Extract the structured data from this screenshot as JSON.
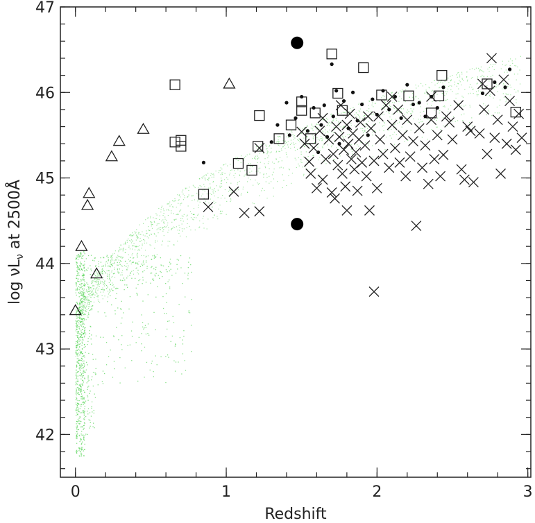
{
  "chart_data": {
    "type": "scatter",
    "title": "",
    "xlabel": "Redshift",
    "ylabel_parts": {
      "pre": "log ",
      "nu": "ν",
      "L": "L",
      "sub": "ν",
      "post": " at 2500Å"
    },
    "xlim": [
      -0.1,
      3.02
    ],
    "ylim": [
      41.5,
      47.0
    ],
    "x_ticks": [
      0,
      1,
      2,
      3
    ],
    "y_ticks": [
      42,
      43,
      44,
      45,
      46,
      47
    ],
    "x_tick_labels": [
      "0",
      "1",
      "2",
      "3"
    ],
    "y_tick_labels": [
      "42",
      "43",
      "44",
      "45",
      "46",
      "47"
    ],
    "colors": {
      "background_points": "#33cc33",
      "markers": "#222222"
    },
    "series": [
      {
        "marker": "triangle",
        "points": [
          [
            0.0,
            43.45
          ],
          [
            0.04,
            44.2
          ],
          [
            0.08,
            44.68
          ],
          [
            0.09,
            44.82
          ],
          [
            0.14,
            43.88
          ],
          [
            0.24,
            45.25
          ],
          [
            0.29,
            45.43
          ],
          [
            0.45,
            45.57
          ],
          [
            1.02,
            46.1
          ]
        ]
      },
      {
        "marker": "square",
        "points": [
          [
            0.66,
            46.09
          ],
          [
            0.66,
            45.42
          ],
          [
            0.7,
            45.44
          ],
          [
            0.7,
            45.37
          ],
          [
            0.85,
            44.81
          ],
          [
            1.08,
            45.17
          ],
          [
            1.17,
            45.09
          ],
          [
            1.22,
            45.73
          ],
          [
            1.21,
            45.37
          ],
          [
            1.35,
            45.46
          ],
          [
            1.43,
            45.62
          ],
          [
            1.5,
            45.89
          ],
          [
            1.5,
            45.79
          ],
          [
            1.56,
            45.46
          ],
          [
            1.59,
            45.76
          ],
          [
            1.7,
            46.45
          ],
          [
            1.74,
            45.99
          ],
          [
            1.77,
            45.79
          ],
          [
            1.91,
            46.29
          ],
          [
            2.03,
            45.97
          ],
          [
            2.21,
            45.96
          ],
          [
            2.36,
            45.76
          ],
          [
            2.41,
            45.96
          ],
          [
            2.43,
            46.2
          ],
          [
            2.73,
            46.1
          ],
          [
            2.92,
            45.77
          ]
        ]
      },
      {
        "marker": "cross",
        "points": [
          [
            0.88,
            44.66
          ],
          [
            1.05,
            44.84
          ],
          [
            1.12,
            44.59
          ],
          [
            1.22,
            44.61
          ],
          [
            1.22,
            45.35
          ],
          [
            1.5,
            45.54
          ],
          [
            1.52,
            45.4
          ],
          [
            1.55,
            45.19
          ],
          [
            1.58,
            45.35
          ],
          [
            1.6,
            44.88
          ],
          [
            1.62,
            45.55
          ],
          [
            1.64,
            45.7
          ],
          [
            1.66,
            45.22
          ],
          [
            1.68,
            45.45
          ],
          [
            1.7,
            44.83
          ],
          [
            1.71,
            45.28
          ],
          [
            1.72,
            44.76
          ],
          [
            1.73,
            45.6
          ],
          [
            1.74,
            45.15
          ],
          [
            1.75,
            45.48
          ],
          [
            1.76,
            45.85
          ],
          [
            1.77,
            45.05
          ],
          [
            1.78,
            45.33
          ],
          [
            1.79,
            44.9
          ],
          [
            1.8,
            45.62
          ],
          [
            1.8,
            44.62
          ],
          [
            1.81,
            45.4
          ],
          [
            1.82,
            45.75
          ],
          [
            1.83,
            45.22
          ],
          [
            1.84,
            45.52
          ],
          [
            1.85,
            45.1
          ],
          [
            1.86,
            45.3
          ],
          [
            1.87,
            44.85
          ],
          [
            1.88,
            45.45
          ],
          [
            1.89,
            45.65
          ],
          [
            1.9,
            45.18
          ],
          [
            1.92,
            45.38
          ],
          [
            1.93,
            45.02
          ],
          [
            1.95,
            44.62
          ],
          [
            1.96,
            45.58
          ],
          [
            1.98,
            45.2
          ],
          [
            1.98,
            43.67
          ],
          [
            2.0,
            44.88
          ],
          [
            2.01,
            45.72
          ],
          [
            2.02,
            45.45
          ],
          [
            2.04,
            45.28
          ],
          [
            2.06,
            45.85
          ],
          [
            2.08,
            45.12
          ],
          [
            2.1,
            45.62
          ],
          [
            2.12,
            45.35
          ],
          [
            2.14,
            45.8
          ],
          [
            2.15,
            45.18
          ],
          [
            2.17,
            45.5
          ],
          [
            2.19,
            45.02
          ],
          [
            2.2,
            45.68
          ],
          [
            2.22,
            45.25
          ],
          [
            2.24,
            45.43
          ],
          [
            2.26,
            44.44
          ],
          [
            2.28,
            45.58
          ],
          [
            2.3,
            45.12
          ],
          [
            2.32,
            45.38
          ],
          [
            2.34,
            44.93
          ],
          [
            2.36,
            45.68
          ],
          [
            2.38,
            45.22
          ],
          [
            2.4,
            45.5
          ],
          [
            2.42,
            45.02
          ],
          [
            2.44,
            45.27
          ],
          [
            2.46,
            45.72
          ],
          [
            2.5,
            45.45
          ],
          [
            2.54,
            45.85
          ],
          [
            2.56,
            45.1
          ],
          [
            2.58,
            44.98
          ],
          [
            2.6,
            45.6
          ],
          [
            2.64,
            44.95
          ],
          [
            2.68,
            45.52
          ],
          [
            2.7,
            46.1
          ],
          [
            2.71,
            45.8
          ],
          [
            2.73,
            45.28
          ],
          [
            2.75,
            46.02
          ],
          [
            2.76,
            46.4
          ],
          [
            2.78,
            45.47
          ],
          [
            2.8,
            45.68
          ],
          [
            2.82,
            45.05
          ],
          [
            2.84,
            46.15
          ],
          [
            2.86,
            45.4
          ],
          [
            2.88,
            45.9
          ],
          [
            2.9,
            45.6
          ],
          [
            2.92,
            45.33
          ],
          [
            2.94,
            45.75
          ],
          [
            2.96,
            45.47
          ],
          [
            1.56,
            45.05
          ],
          [
            1.64,
            44.98
          ],
          [
            1.94,
            45.72
          ],
          [
            2.1,
            45.95
          ],
          [
            2.36,
            45.95
          ],
          [
            2.48,
            45.65
          ],
          [
            2.62,
            45.55
          ]
        ]
      },
      {
        "marker": "dot",
        "points": [
          [
            0.85,
            45.18
          ],
          [
            1.3,
            45.42
          ],
          [
            1.34,
            45.62
          ],
          [
            1.4,
            45.88
          ],
          [
            1.42,
            45.5
          ],
          [
            1.46,
            45.7
          ],
          [
            1.5,
            45.95
          ],
          [
            1.54,
            45.55
          ],
          [
            1.58,
            45.82
          ],
          [
            1.61,
            45.3
          ],
          [
            1.63,
            45.62
          ],
          [
            1.65,
            45.85
          ],
          [
            1.67,
            45.48
          ],
          [
            1.7,
            46.33
          ],
          [
            1.71,
            45.72
          ],
          [
            1.73,
            46.02
          ],
          [
            1.75,
            45.4
          ],
          [
            1.78,
            45.9
          ],
          [
            1.81,
            45.58
          ],
          [
            1.84,
            46.0
          ],
          [
            1.87,
            45.67
          ],
          [
            1.9,
            45.86
          ],
          [
            1.94,
            45.5
          ],
          [
            1.97,
            45.92
          ],
          [
            2.0,
            45.74
          ],
          [
            2.04,
            46.02
          ],
          [
            2.08,
            45.8
          ],
          [
            2.12,
            45.95
          ],
          [
            2.16,
            45.7
          ],
          [
            2.2,
            46.09
          ],
          [
            2.24,
            45.86
          ],
          [
            2.28,
            45.88
          ],
          [
            2.32,
            45.72
          ],
          [
            2.36,
            45.95
          ],
          [
            2.4,
            45.82
          ],
          [
            2.44,
            46.06
          ],
          [
            2.7,
            45.99
          ],
          [
            2.78,
            46.12
          ],
          [
            2.85,
            46.06
          ],
          [
            2.88,
            46.27
          ]
        ]
      },
      {
        "marker": "big-dot",
        "points": [
          [
            1.47,
            46.58
          ],
          [
            1.47,
            44.46
          ]
        ]
      }
    ]
  }
}
